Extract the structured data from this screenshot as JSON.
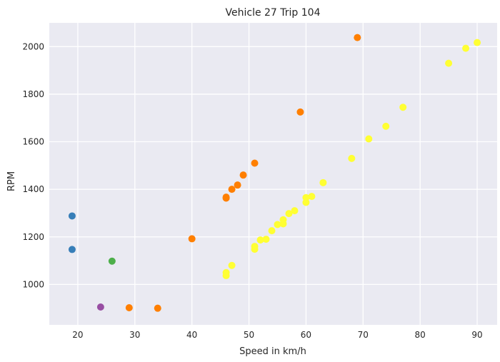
{
  "chart_data": {
    "type": "scatter",
    "title": "Vehicle 27 Trip 104",
    "xlabel": "Speed in km/h",
    "ylabel": "RPM",
    "xlim": [
      15,
      93.5
    ],
    "ylim": [
      830,
      2100
    ],
    "xticks": [
      20,
      30,
      40,
      50,
      60,
      70,
      80,
      90
    ],
    "yticks": [
      1000,
      1200,
      1400,
      1600,
      1800,
      2000
    ],
    "grid": true,
    "background": "#eaeaf2",
    "series": [
      {
        "name": "blue",
        "color": "#377eb8",
        "points": [
          [
            19,
            1288
          ],
          [
            19,
            1147
          ]
        ]
      },
      {
        "name": "green",
        "color": "#4daf4a",
        "points": [
          [
            26,
            1098
          ]
        ]
      },
      {
        "name": "purple",
        "color": "#984ea3",
        "points": [
          [
            24,
            905
          ]
        ]
      },
      {
        "name": "orange",
        "color": "#ff7f00",
        "points": [
          [
            29,
            902
          ],
          [
            34,
            900
          ],
          [
            40,
            1192
          ],
          [
            46,
            1363
          ],
          [
            46,
            1367
          ],
          [
            47,
            1400
          ],
          [
            48,
            1418
          ],
          [
            49,
            1460
          ],
          [
            51,
            1510
          ],
          [
            59,
            1725
          ],
          [
            69,
            2038
          ]
        ]
      },
      {
        "name": "yellow",
        "color": "#ffff33",
        "points": [
          [
            46,
            1037
          ],
          [
            46,
            1050
          ],
          [
            47,
            1080
          ],
          [
            51,
            1148
          ],
          [
            51,
            1160
          ],
          [
            52,
            1187
          ],
          [
            53,
            1190
          ],
          [
            54,
            1226
          ],
          [
            55,
            1252
          ],
          [
            56,
            1255
          ],
          [
            56,
            1272
          ],
          [
            57,
            1298
          ],
          [
            58,
            1310
          ],
          [
            60,
            1345
          ],
          [
            60,
            1365
          ],
          [
            61,
            1370
          ],
          [
            63,
            1428
          ],
          [
            68,
            1530
          ],
          [
            71,
            1612
          ],
          [
            74,
            1665
          ],
          [
            77,
            1745
          ],
          [
            85,
            1930
          ],
          [
            88,
            1993
          ],
          [
            90,
            2017
          ]
        ]
      }
    ]
  }
}
